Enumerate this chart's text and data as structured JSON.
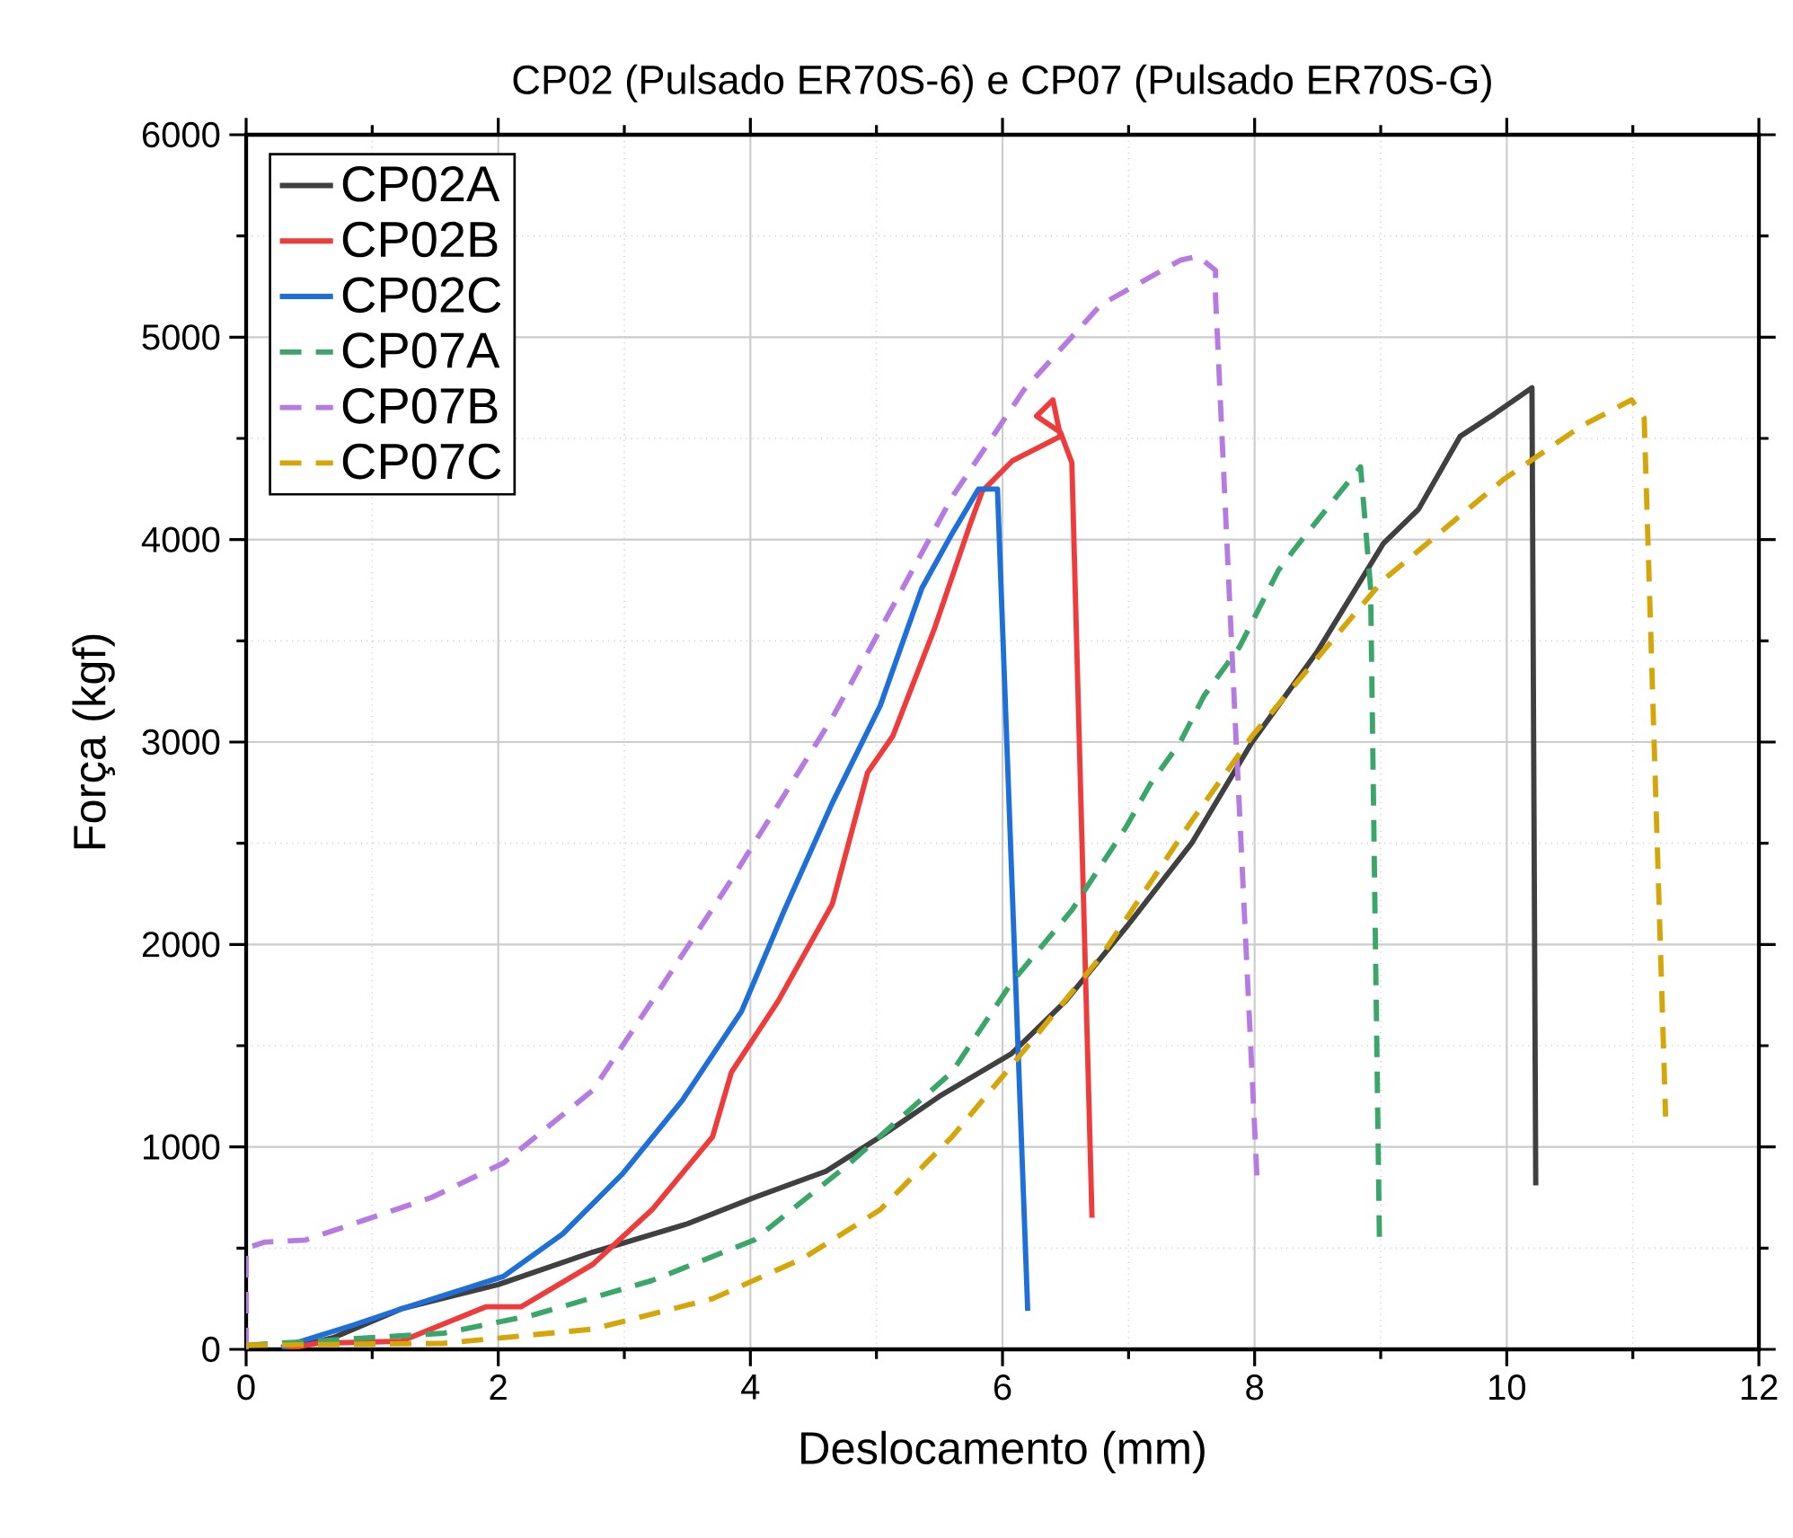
{
  "chart_data": {
    "type": "line",
    "title": "CP02 (Pulsado ER70S-6) e CP07 (Pulsado ER70S-G)",
    "xlabel": "Deslocamento (mm)",
    "ylabel": "Força (kgf)",
    "xlim": [
      0,
      12
    ],
    "ylim": [
      0,
      6000
    ],
    "xticks": [
      0,
      2,
      4,
      6,
      8,
      10,
      12
    ],
    "yticks": [
      0,
      1000,
      2000,
      3000,
      4000,
      5000,
      6000
    ],
    "grid": true,
    "legend": "top left",
    "series": [
      {
        "name": "CP02A",
        "color": "#404040",
        "line_style": "solid",
        "x": [
          0.3,
          0.7,
          1.23,
          2.0,
          2.75,
          3.5,
          4.03,
          4.6,
          5.03,
          5.5,
          6.07,
          6.5,
          7.0,
          7.5,
          7.98,
          8.5,
          9.02,
          9.3,
          9.63,
          9.9,
          10.2,
          10.23
        ],
        "values": [
          0,
          60,
          200,
          320,
          480,
          620,
          750,
          880,
          1050,
          1250,
          1460,
          1720,
          2100,
          2500,
          3000,
          3450,
          3980,
          4150,
          4510,
          4620,
          4750,
          810
        ]
      },
      {
        "name": "CP02B",
        "color": "#ee3b3b",
        "line_style": "solid",
        "x": [
          0.3,
          0.57,
          1.23,
          1.9,
          2.18,
          2.75,
          3.22,
          3.7,
          3.85,
          4.22,
          4.65,
          4.93,
          5.13,
          5.46,
          5.74,
          5.84,
          6.08,
          6.3,
          6.46,
          6.4,
          6.27,
          6.46,
          6.55,
          6.71
        ],
        "values": [
          0,
          30,
          40,
          210,
          210,
          420,
          690,
          1050,
          1370,
          1720,
          2200,
          2850,
          3030,
          3560,
          4070,
          4240,
          4390,
          4460,
          4510,
          4690,
          4610,
          4530,
          4380,
          650
        ]
      },
      {
        "name": "CP02C",
        "color": "#1f6fd8",
        "line_style": "solid",
        "x": [
          0.28,
          0.85,
          1.23,
          2.04,
          2.51,
          2.99,
          3.46,
          3.93,
          4.27,
          4.65,
          5.03,
          5.36,
          5.6,
          5.81,
          5.96,
          6.2
        ],
        "values": [
          10,
          120,
          200,
          360,
          570,
          870,
          1230,
          1670,
          2170,
          2700,
          3180,
          3760,
          4030,
          4250,
          4250,
          190
        ]
      },
      {
        "name": "CP07A",
        "color": "#3aa66a",
        "line_style": "dashed",
        "x": [
          0,
          1.57,
          2.28,
          3.22,
          4.03,
          4.79,
          5.6,
          6.07,
          6.55,
          6.98,
          7.17,
          7.41,
          7.6,
          7.88,
          8.19,
          8.35,
          8.84,
          8.92,
          8.99
        ],
        "values": [
          20,
          80,
          170,
          340,
          540,
          920,
          1370,
          1810,
          2170,
          2580,
          2790,
          3000,
          3230,
          3470,
          3850,
          3980,
          4360,
          3760,
          540
        ]
      },
      {
        "name": "CP07B",
        "color": "#b57be0",
        "line_style": "dashed",
        "x": [
          0,
          0,
          0.15,
          0.47,
          1.47,
          2.04,
          2.75,
          3.22,
          3.85,
          4.65,
          5.6,
          6.17,
          6.78,
          7.41,
          7.55,
          7.69,
          7.69,
          7.84,
          8.02
        ],
        "values": [
          0,
          500,
          530,
          540,
          750,
          920,
          1280,
          1720,
          2320,
          3120,
          4210,
          4740,
          5160,
          5380,
          5400,
          5330,
          5200,
          3180,
          830
        ]
      },
      {
        "name": "CP07C",
        "color": "#d4a60a",
        "line_style": "dashed",
        "x": [
          0,
          1.57,
          2.75,
          3.7,
          4.42,
          5.03,
          5.6,
          6.07,
          6.78,
          7.5,
          7.98,
          8.45,
          9.02,
          9.98,
          10.59,
          10.99,
          11.09,
          11.26
        ],
        "values": [
          20,
          30,
          100,
          250,
          450,
          690,
          1050,
          1400,
          1940,
          2610,
          3030,
          3380,
          3800,
          4300,
          4560,
          4690,
          4600,
          1150
        ]
      }
    ]
  }
}
